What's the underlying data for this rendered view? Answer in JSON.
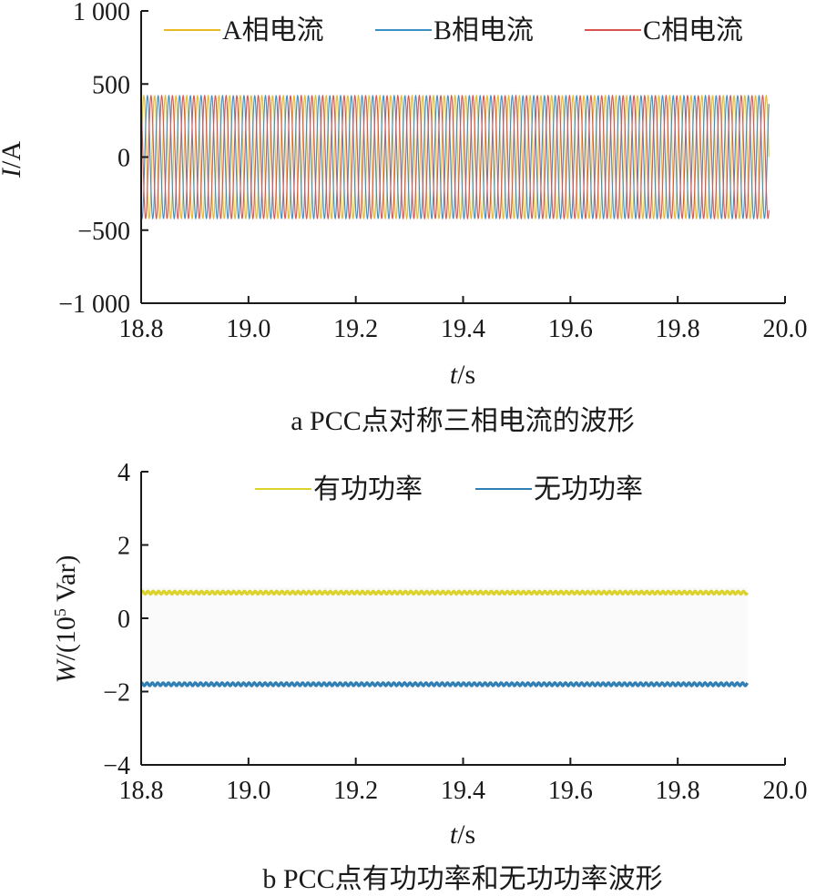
{
  "chart_data": [
    {
      "type": "line",
      "caption": "a PCC点对称三相电流的波形",
      "xlabel": {
        "var": "t",
        "unit": "/s"
      },
      "ylabel": {
        "var": "I",
        "unit": "/A"
      },
      "xlim": [
        18.8,
        20.0
      ],
      "ylim": [
        -1000,
        1000
      ],
      "xticks": [
        18.8,
        19.0,
        19.2,
        19.4,
        19.6,
        19.8,
        20.0
      ],
      "xtick_labels": [
        "18.8",
        "19.0",
        "19.2",
        "19.4",
        "19.6",
        "19.8",
        "20.0"
      ],
      "yticks": [
        1000,
        500,
        0,
        -500,
        -1000
      ],
      "ytick_labels": [
        "1 000",
        "500",
        "0",
        "−500",
        "−1 000"
      ],
      "grid": false,
      "legend_position": "top",
      "data_range_x": [
        18.8,
        19.97
      ],
      "frequency_hz": 50,
      "amplitude": 420,
      "series": [
        {
          "name": "A相电流",
          "color": "#e8b923",
          "phase_deg": 0
        },
        {
          "name": "B相电流",
          "color": "#3a8fc4",
          "phase_deg": -120
        },
        {
          "name": "C相电流",
          "color": "#d9534f",
          "phase_deg": 120
        }
      ]
    },
    {
      "type": "line",
      "caption": "b PCC点有功功率和无功功率波形",
      "xlabel": {
        "var": "t",
        "unit": "/s"
      },
      "ylabel": {
        "var": "W",
        "unit": "/(10",
        "sup": "5",
        "unit_end": " Var)"
      },
      "xlim": [
        18.8,
        20.0
      ],
      "ylim": [
        -4,
        4
      ],
      "xticks": [
        18.8,
        19.0,
        19.2,
        19.4,
        19.6,
        19.8,
        20.0
      ],
      "xtick_labels": [
        "18.8",
        "19.0",
        "19.2",
        "19.4",
        "19.6",
        "19.8",
        "20.0"
      ],
      "yticks": [
        4,
        2,
        0,
        -2,
        -4
      ],
      "ytick_labels": [
        "4",
        "2",
        "0",
        "−2",
        "−4"
      ],
      "grid": false,
      "legend_position": "top",
      "data_range_x": [
        18.8,
        19.93
      ],
      "series": [
        {
          "name": "有功功率",
          "color": "#dcd22a",
          "mean": 0.7,
          "ripple": 0.04
        },
        {
          "name": "无功功率",
          "color": "#2f7fb5",
          "mean": -1.8,
          "ripple": 0.04
        }
      ]
    }
  ]
}
